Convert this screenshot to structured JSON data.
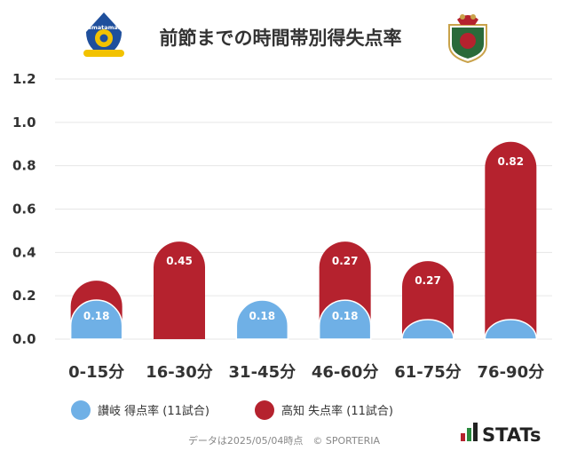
{
  "header": {
    "title": "前節までの時間帯別得失点率",
    "left_logo_text": "Kamatamare",
    "left_logo_icon": "kamatamare-sanuki-crest-icon",
    "right_logo_icon": "kochi-united-crest-icon"
  },
  "footer": {
    "note": "データは2025/05/04時点　© SPORTERIA",
    "brand": "STATs",
    "brand_icon": "stats-bar-logo-icon"
  },
  "colors": {
    "series_sanuki": "#6fb0e6",
    "series_kochi": "#b5222e",
    "grid": "#e6e6e6"
  },
  "chart_data": {
    "type": "bar",
    "categories": [
      "0-15分",
      "16-30分",
      "31-45分",
      "46-60分",
      "61-75分",
      "76-90分"
    ],
    "series": [
      {
        "name": "讃岐 得点率 (11試合)",
        "values": [
          0.18,
          0,
          0.18,
          0.18,
          0.09,
          0.09
        ],
        "labels": [
          "0.18",
          "",
          "0.18",
          "0.18",
          "",
          ""
        ]
      },
      {
        "name": "高知 失点率 (11試合)",
        "values": [
          0.27,
          0.45,
          0,
          0.45,
          0.36,
          0.91
        ],
        "labels": [
          "",
          "0.45",
          "",
          "0.27",
          "0.27",
          "0.82"
        ]
      }
    ],
    "ylim": [
      0,
      1.2
    ],
    "yticks": [
      "0.0",
      "0.2",
      "0.4",
      "0.6",
      "0.8",
      "1.0",
      "1.2"
    ],
    "grid": true,
    "legend": "bottom",
    "overlap": true
  }
}
